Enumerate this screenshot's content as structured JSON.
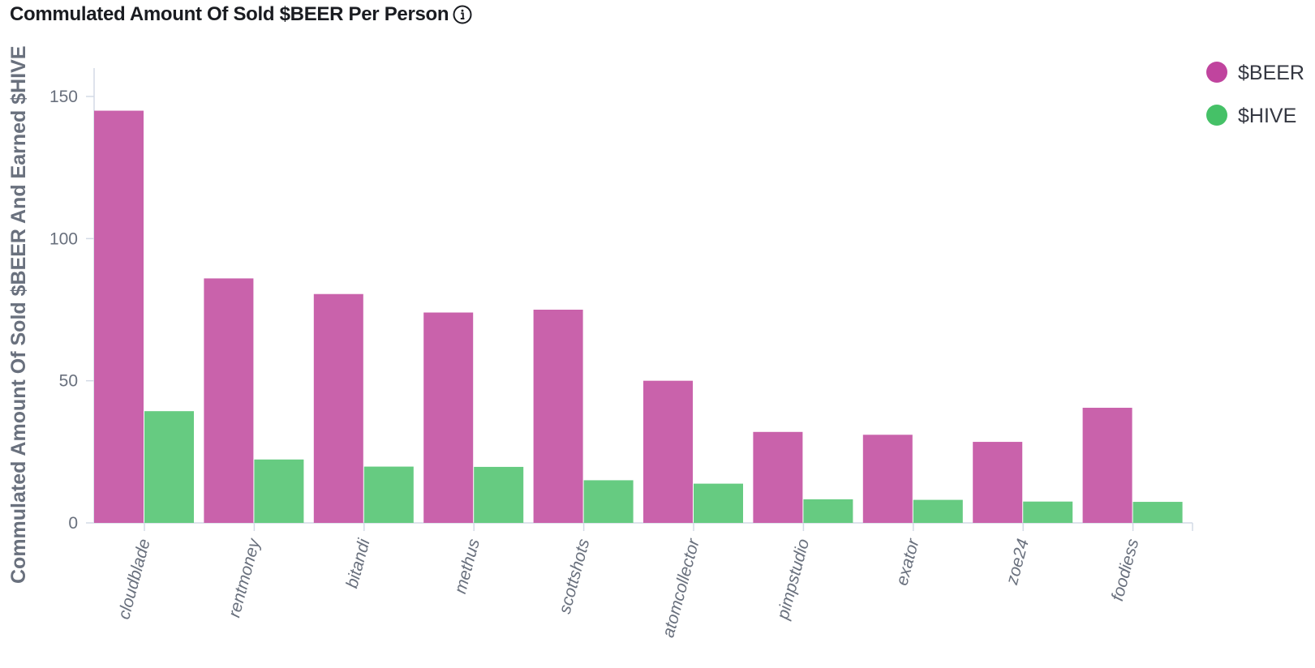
{
  "chart_data": {
    "type": "bar",
    "title": "Commulated Amount Of Sold $BEER Per Person",
    "xlabel": "",
    "ylabel": "Commulated Amount Of Sold $BEER And Earned $HIVE",
    "ylim": [
      0,
      160
    ],
    "yticks": [
      "0",
      "50",
      "100",
      "150"
    ],
    "ytick_values": [
      0,
      50,
      100,
      150
    ],
    "categories": [
      "cloudblade",
      "rentmoney",
      "bitandi",
      "methus",
      "scottshots",
      "atomcollector",
      "pimpstudio",
      "exator",
      "zoe24",
      "foodiess"
    ],
    "series": [
      {
        "name": "$BEER",
        "color": "#c962ab",
        "legend_color": "#c0449e",
        "values": [
          145,
          86,
          80.5,
          74,
          75,
          50,
          32,
          31,
          28.5,
          40.5
        ]
      },
      {
        "name": "$HIVE",
        "color": "#66cb81",
        "legend_color": "#45c167",
        "values": [
          39.3,
          22.3,
          19.8,
          19.7,
          15,
          13.8,
          8.3,
          8.1,
          7.5,
          7.4
        ]
      }
    ],
    "legend_position": "top-right",
    "grid": false
  }
}
